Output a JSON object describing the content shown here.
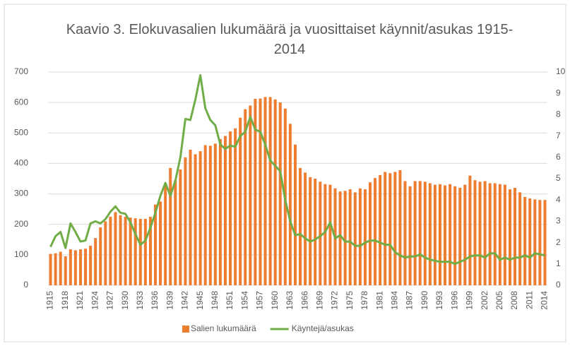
{
  "chart_data": {
    "type": "bar-line",
    "title": "Kaavio 3. Elokuvasalien lukumäärä ja vuosittaiset käynnit/asukas 1915-2014",
    "categories": [
      "1915",
      null,
      null,
      "1918",
      null,
      null,
      "1921",
      null,
      null,
      "1924",
      null,
      null,
      "1927",
      null,
      null,
      "1930",
      null,
      null,
      "1933",
      null,
      null,
      "1936",
      null,
      null,
      "1939",
      null,
      null,
      "1942",
      null,
      null,
      "1945",
      null,
      null,
      "1948",
      null,
      null,
      "1951",
      null,
      null,
      "1954",
      null,
      null,
      "1957",
      null,
      null,
      "1960",
      null,
      null,
      "1963",
      null,
      null,
      "1966",
      null,
      null,
      "1969",
      null,
      null,
      "1972",
      null,
      null,
      "1975",
      null,
      null,
      "1978",
      null,
      null,
      "1981",
      null,
      null,
      "1984",
      null,
      null,
      "1987",
      null,
      null,
      "1990",
      null,
      null,
      "1993",
      null,
      null,
      "1996",
      null,
      null,
      "1999",
      null,
      null,
      "2002",
      null,
      null,
      "2005",
      null,
      null,
      "2008",
      null,
      null,
      "2011",
      null,
      null,
      "2014"
    ],
    "series": [
      {
        "name": "Salien lukumäärä",
        "type": "bar",
        "color": "#ed7d31",
        "values": [
          103,
          105,
          110,
          95,
          118,
          115,
          118,
          120,
          130,
          155,
          190,
          210,
          225,
          240,
          230,
          225,
          222,
          220,
          218,
          218,
          225,
          265,
          275,
          330,
          385,
          345,
          380,
          420,
          445,
          430,
          440,
          460,
          458,
          465,
          480,
          490,
          505,
          515,
          550,
          578,
          590,
          612,
          613,
          618,
          618,
          610,
          600,
          580,
          530,
          462,
          385,
          370,
          355,
          350,
          340,
          332,
          330,
          318,
          308,
          310,
          315,
          305,
          318,
          315,
          338,
          352,
          362,
          372,
          368,
          372,
          378,
          342,
          325,
          342,
          342,
          340,
          335,
          330,
          332,
          328,
          332,
          325,
          320,
          330,
          360,
          345,
          340,
          342,
          335,
          335,
          332,
          330,
          315,
          320,
          305,
          290,
          285,
          282,
          280,
          280
        ]
      },
      {
        "name": "Käyntejä/asukas",
        "type": "line",
        "axis": "y2",
        "color": "#70ad47",
        "values": [
          1.8,
          2.3,
          2.5,
          1.75,
          2.9,
          2.5,
          2.05,
          2.1,
          2.9,
          3.0,
          2.9,
          3.1,
          3.45,
          3.7,
          3.4,
          3.35,
          2.95,
          2.4,
          1.9,
          2.1,
          2.7,
          3.4,
          4.2,
          4.8,
          4.2,
          4.9,
          6.0,
          7.8,
          7.75,
          8.7,
          9.85,
          8.3,
          7.75,
          7.5,
          6.6,
          6.4,
          6.55,
          6.5,
          7.0,
          7.2,
          7.9,
          7.3,
          7.2,
          6.6,
          5.85,
          5.6,
          5.35,
          4.0,
          3.0,
          2.35,
          2.4,
          2.2,
          2.05,
          2.15,
          2.3,
          2.5,
          2.95,
          2.2,
          2.35,
          2.05,
          2.05,
          1.85,
          1.85,
          2.0,
          2.1,
          2.1,
          2.0,
          1.9,
          1.9,
          1.55,
          1.4,
          1.3,
          1.35,
          1.35,
          1.45,
          1.3,
          1.2,
          1.15,
          1.1,
          1.1,
          1.1,
          1.0,
          1.1,
          1.2,
          1.35,
          1.4,
          1.4,
          1.3,
          1.5,
          1.5,
          1.2,
          1.3,
          1.2,
          1.3,
          1.3,
          1.4,
          1.3,
          1.5,
          1.45,
          1.4
        ]
      }
    ],
    "ylim": [
      0,
      700
    ],
    "yticks": [
      0,
      100,
      200,
      300,
      400,
      500,
      600,
      700
    ],
    "y2lim": [
      0,
      10
    ],
    "y2ticks": [
      0,
      1,
      2,
      3,
      4,
      5,
      6,
      7,
      8,
      9,
      10
    ],
    "grid": true,
    "legend": "bottom"
  }
}
